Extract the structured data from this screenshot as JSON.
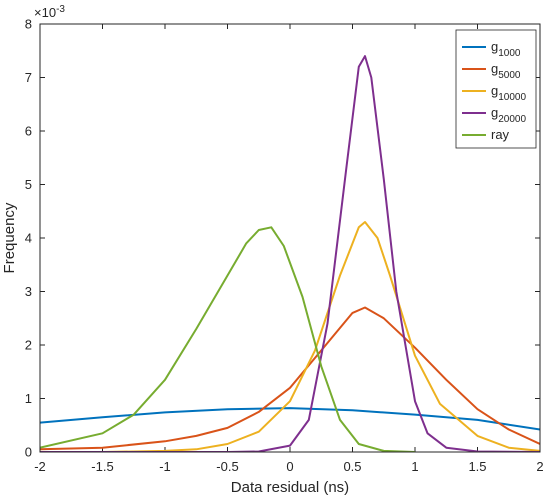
{
  "chart_data": {
    "type": "line",
    "xlabel": "Data residual (ns)",
    "ylabel": "Frequency",
    "y_exponent_label": "×10",
    "y_exponent_power": "-3",
    "xlim": [
      -2,
      2
    ],
    "ylim": [
      0,
      8
    ],
    "xticks": [
      "-2",
      "-1.5",
      "-1",
      "-0.5",
      "0",
      "0.5",
      "1",
      "1.5",
      "2"
    ],
    "yticks": [
      "0",
      "1",
      "2",
      "3",
      "4",
      "5",
      "6",
      "7",
      "8"
    ],
    "grid": false,
    "legend_position": "top-right",
    "series": [
      {
        "name_base": "g",
        "name_sub": "1000",
        "color": "#0072BD",
        "x": [
          -2,
          -1.5,
          -1,
          -0.5,
          0,
          0.5,
          1,
          1.5,
          2
        ],
        "y": [
          0.55,
          0.65,
          0.74,
          0.8,
          0.82,
          0.78,
          0.7,
          0.6,
          0.42
        ]
      },
      {
        "name_base": "g",
        "name_sub": "5000",
        "color": "#D95319",
        "x": [
          -2,
          -1.5,
          -1,
          -0.75,
          -0.5,
          -0.25,
          0,
          0.25,
          0.5,
          0.6,
          0.75,
          1,
          1.25,
          1.5,
          1.75,
          2
        ],
        "y": [
          0.05,
          0.08,
          0.2,
          0.3,
          0.45,
          0.75,
          1.2,
          1.9,
          2.6,
          2.7,
          2.5,
          1.95,
          1.35,
          0.8,
          0.42,
          0.15
        ]
      },
      {
        "name_base": "g",
        "name_sub": "10000",
        "color": "#EDB120",
        "x": [
          -2,
          -1.5,
          -1,
          -0.75,
          -0.5,
          -0.25,
          0,
          0.2,
          0.4,
          0.55,
          0.6,
          0.7,
          0.8,
          1,
          1.2,
          1.5,
          1.75,
          2
        ],
        "y": [
          0,
          0,
          0.02,
          0.05,
          0.15,
          0.38,
          0.95,
          1.9,
          3.3,
          4.2,
          4.3,
          4.0,
          3.3,
          1.8,
          0.9,
          0.3,
          0.08,
          0.02
        ]
      },
      {
        "name_base": "g",
        "name_sub": "20000",
        "color": "#7E2F8E",
        "x": [
          -2,
          -0.5,
          -0.25,
          0,
          0.15,
          0.3,
          0.45,
          0.55,
          0.6,
          0.65,
          0.75,
          0.85,
          1,
          1.1,
          1.25,
          1.5,
          2
        ],
        "y": [
          0,
          0,
          0.01,
          0.12,
          0.6,
          2.4,
          5.3,
          7.2,
          7.4,
          7.0,
          5.1,
          3.0,
          0.95,
          0.35,
          0.08,
          0.01,
          0
        ]
      },
      {
        "name_base": "ray",
        "name_sub": "",
        "color": "#77AC30",
        "x": [
          -2,
          -1.5,
          -1.25,
          -1,
          -0.75,
          -0.5,
          -0.35,
          -0.25,
          -0.15,
          -0.05,
          0.1,
          0.25,
          0.4,
          0.55,
          0.75,
          1
        ],
        "y": [
          0.08,
          0.35,
          0.7,
          1.35,
          2.3,
          3.3,
          3.9,
          4.15,
          4.2,
          3.85,
          2.9,
          1.6,
          0.6,
          0.15,
          0.02,
          0
        ]
      }
    ]
  }
}
